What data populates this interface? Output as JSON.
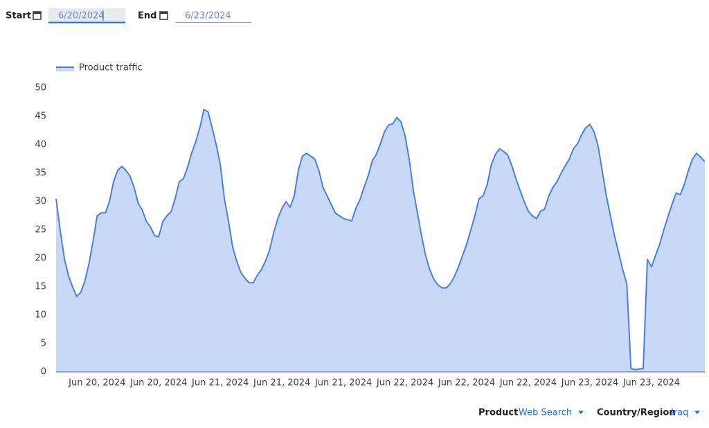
{
  "controls": {
    "start_label": "Start",
    "start_date": "6/20/2024",
    "end_label": "End",
    "end_date": "6/23/2024",
    "product_label": "Product",
    "product_value": "Web Search",
    "region_label": "Country/Region",
    "region_value": "Iraq"
  },
  "chart_data": {
    "type": "area",
    "categories": [
      null,
      null,
      null,
      null,
      null,
      null,
      null,
      null,
      null,
      null,
      "Jun 20, 2024",
      null,
      null,
      null,
      null,
      null,
      null,
      null,
      null,
      null,
      null,
      null,
      null,
      null,
      null,
      "Jun 20, 2024",
      null,
      null,
      null,
      null,
      null,
      null,
      null,
      null,
      null,
      null,
      null,
      null,
      null,
      null,
      "Jun 21, 2024",
      null,
      null,
      null,
      null,
      null,
      null,
      null,
      null,
      null,
      null,
      null,
      null,
      null,
      null,
      "Jun 21, 2024",
      null,
      null,
      null,
      null,
      null,
      null,
      null,
      null,
      null,
      null,
      null,
      null,
      null,
      null,
      "Jun 21, 2024",
      null,
      null,
      null,
      null,
      null,
      null,
      null,
      null,
      null,
      null,
      null,
      null,
      null,
      null,
      "Jun 22, 2024",
      null,
      null,
      null,
      null,
      null,
      null,
      null,
      null,
      null,
      null,
      null,
      null,
      null,
      null,
      "Jun 22, 2024",
      null,
      null,
      null,
      null,
      null,
      null,
      null,
      null,
      null,
      null,
      null,
      null,
      null,
      null,
      "Jun 22, 2024",
      null,
      null,
      null,
      null,
      null,
      null,
      null,
      null,
      null,
      null,
      null,
      null,
      null,
      null,
      "Jun 23, 2024",
      null,
      null,
      null,
      null,
      null,
      null,
      null,
      null,
      null,
      null,
      null,
      null,
      null,
      null,
      "Jun 23, 2024",
      null,
      null,
      null,
      null,
      null,
      null,
      null,
      null,
      null,
      null,
      null,
      null,
      null
    ],
    "series": [
      {
        "name": "Product traffic",
        "color": "#4a7fe0",
        "values": [
          30.5,
          25,
          20,
          17,
          15,
          13.3,
          14,
          16,
          19,
          23,
          27.5,
          28,
          28,
          30,
          33.5,
          35.5,
          36.2,
          35.5,
          34.5,
          32.5,
          29.7,
          28.5,
          26.5,
          25.5,
          24,
          23.8,
          26.5,
          27.5,
          28.2,
          30.5,
          33.5,
          34,
          36,
          38.5,
          40.5,
          43,
          46.2,
          45.8,
          43,
          40,
          36.5,
          30.5,
          26.5,
          22,
          19.5,
          17.5,
          16.5,
          15.7,
          15.7,
          17,
          18,
          19.5,
          21.5,
          24.5,
          27,
          28.8,
          30,
          29,
          31,
          35.5,
          38,
          38.5,
          38,
          37.5,
          35.5,
          32.5,
          31,
          29.5,
          28,
          27.5,
          27,
          26.8,
          26.6,
          28.8,
          30.3,
          32.5,
          34.5,
          37.2,
          38.3,
          40.2,
          42.3,
          43.5,
          43.7,
          44.8,
          44,
          41.5,
          37.5,
          32,
          28,
          24,
          20.5,
          18,
          16.3,
          15.3,
          14.8,
          14.8,
          15.5,
          16.8,
          18.5,
          20.5,
          22.5,
          25,
          27.5,
          30.5,
          31,
          33,
          36.5,
          38.3,
          39.3,
          38.8,
          38.2,
          36.3,
          34,
          32,
          30,
          28.3,
          27.5,
          27,
          28.3,
          28.7,
          31,
          32.5,
          33.5,
          35,
          36.3,
          37.5,
          39.3,
          40.2,
          41.8,
          43,
          43.6,
          42.3,
          39.8,
          35.5,
          31,
          27.5,
          24,
          21,
          18,
          15.5,
          0.6,
          0.4,
          0.5,
          0.6,
          19.8,
          18.5,
          20.5,
          22.5,
          25,
          27.3,
          29.5,
          31.5,
          31.2,
          33,
          35.5,
          37.5,
          38.5,
          37.8,
          37
        ]
      }
    ],
    "ylim": [
      0,
      50
    ],
    "yticks": [
      0,
      5,
      10,
      15,
      20,
      25,
      30,
      35,
      40,
      45,
      50
    ],
    "legend": "top-left",
    "fill_color": "#c8d9f7"
  }
}
